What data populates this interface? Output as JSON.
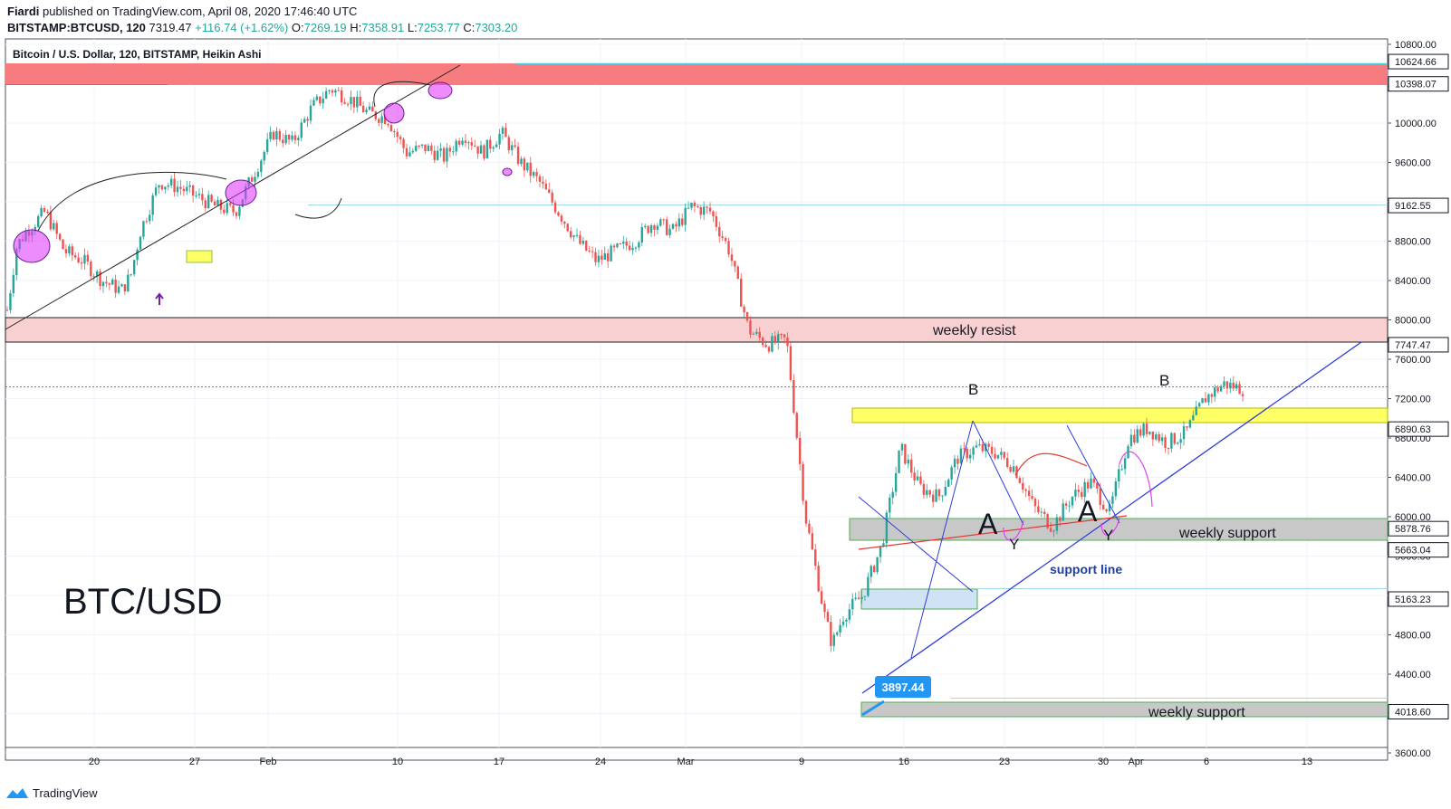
{
  "header": {
    "author": "Fiardi",
    "published": "published on TradingView.com, April 08, 2020 17:46:40 UTC",
    "symbol": "BITSTAMP:BTCUSD, 120",
    "last": "7319.47",
    "change": "+116.74 (+1.62%)",
    "o_label": "O:",
    "o": "7269.19",
    "h_label": "H:",
    "h": "7358.91",
    "l_label": "L:",
    "l": "7253.77",
    "c_label": "C:",
    "c": "7303.20"
  },
  "legend_title": "Bitcoin / U.S. Dollar, 120, BITSTAMP, Heikin Ashi",
  "footer_brand": "TradingView",
  "colors": {
    "up": "#26a69a",
    "down": "#ef5350",
    "accent": "#2196f3"
  },
  "chart_data": {
    "type": "candlestick",
    "title": "BTC/USD",
    "ylim": [
      3400,
      10900
    ],
    "y_ticks": [
      "10800.00",
      "10400.00",
      "10000.00",
      "9600.00",
      "9200.00",
      "8800.00",
      "8400.00",
      "8000.00",
      "7600.00",
      "7200.00",
      "6800.00",
      "6400.00",
      "6000.00",
      "5600.00",
      "5200.00",
      "4800.00",
      "4400.00",
      "4000.00",
      "3600.00"
    ],
    "x_ticks": [
      "20",
      "27",
      "Feb",
      "10",
      "17",
      "24",
      "Mar",
      "9",
      "16",
      "23",
      "30",
      "Apr",
      "6",
      "13"
    ],
    "price_labels": [
      {
        "text": "10624.66",
        "value": 10624.66
      },
      {
        "text": "10398.07",
        "value": 10398.07
      },
      {
        "text": "9162.55",
        "value": 9162.55
      },
      {
        "text": "7747.47",
        "value": 7747.47
      },
      {
        "text": "6890.63",
        "value": 6890.63
      },
      {
        "text": "5878.76",
        "value": 5878.76
      },
      {
        "text": "5663.04",
        "value": 5663.04
      },
      {
        "text": "5163.23",
        "value": 5163.23
      },
      {
        "text": "4018.60",
        "value": 4018.6
      }
    ],
    "current_price": 7319.47,
    "path": [
      [
        0,
        8100
      ],
      [
        0.5,
        8750
      ],
      [
        1,
        8900
      ],
      [
        2,
        9100
      ],
      [
        3,
        8700
      ],
      [
        4,
        8600
      ],
      [
        5,
        8400
      ],
      [
        6,
        8300
      ],
      [
        6.5,
        8450
      ],
      [
        7,
        8900
      ],
      [
        8,
        9400
      ],
      [
        9,
        9350
      ],
      [
        10,
        9250
      ],
      [
        11,
        9150
      ],
      [
        12,
        9100
      ],
      [
        13,
        9500
      ],
      [
        14,
        9900
      ],
      [
        15,
        9800
      ],
      [
        16,
        10150
      ],
      [
        17,
        10350
      ],
      [
        18,
        10250
      ],
      [
        19,
        10100
      ],
      [
        20,
        10050
      ],
      [
        21,
        9700
      ],
      [
        22,
        9750
      ],
      [
        23,
        9650
      ],
      [
        24,
        9900
      ],
      [
        25,
        9700
      ],
      [
        26,
        9900
      ],
      [
        27,
        9600
      ],
      [
        28,
        9400
      ],
      [
        29,
        9100
      ],
      [
        30,
        8800
      ],
      [
        31,
        8600
      ],
      [
        32,
        8700
      ],
      [
        33,
        8800
      ],
      [
        34,
        9000
      ],
      [
        35,
        8900
      ],
      [
        36,
        9150
      ],
      [
        37,
        9100
      ],
      [
        38,
        8700
      ],
      [
        39,
        7900
      ],
      [
        40,
        7750
      ],
      [
        41,
        7800
      ],
      [
        42,
        6000
      ],
      [
        43,
        5000
      ],
      [
        43.4,
        4700
      ],
      [
        44,
        5000
      ],
      [
        45,
        5200
      ],
      [
        46,
        5700
      ],
      [
        47,
        6700
      ],
      [
        48,
        6300
      ],
      [
        49,
        6200
      ],
      [
        50,
        6600
      ],
      [
        51,
        6700
      ],
      [
        52,
        6650
      ],
      [
        53,
        6500
      ],
      [
        54,
        6100
      ],
      [
        55,
        5900
      ],
      [
        56,
        6200
      ],
      [
        57,
        6350
      ],
      [
        58,
        6050
      ],
      [
        59,
        6800
      ],
      [
        60,
        6900
      ],
      [
        61,
        6750
      ],
      [
        62,
        6850
      ],
      [
        63,
        7200
      ],
      [
        64,
        7350
      ],
      [
        65,
        7300
      ]
    ],
    "annotations": {
      "weekly_resist": "weekly resist",
      "weekly_support_1": "weekly support",
      "weekly_support_2": "weekly support",
      "support_line": "support line",
      "low_price": "3897.44",
      "wave_b1": "B",
      "wave_b2": "B",
      "wave_a1": "A",
      "wave_a2": "A",
      "wave_y1": "Y",
      "wave_y2": "Y"
    }
  }
}
